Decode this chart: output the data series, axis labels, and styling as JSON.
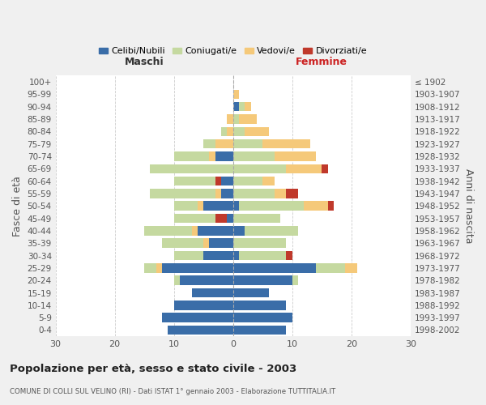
{
  "age_groups": [
    "0-4",
    "5-9",
    "10-14",
    "15-19",
    "20-24",
    "25-29",
    "30-34",
    "35-39",
    "40-44",
    "45-49",
    "50-54",
    "55-59",
    "60-64",
    "65-69",
    "70-74",
    "75-79",
    "80-84",
    "85-89",
    "90-94",
    "95-99",
    "100+"
  ],
  "birth_years": [
    "1998-2002",
    "1993-1997",
    "1988-1992",
    "1983-1987",
    "1978-1982",
    "1973-1977",
    "1968-1972",
    "1963-1967",
    "1958-1962",
    "1953-1957",
    "1948-1952",
    "1943-1947",
    "1938-1942",
    "1933-1937",
    "1928-1932",
    "1923-1927",
    "1918-1922",
    "1913-1917",
    "1908-1912",
    "1903-1907",
    "≤ 1902"
  ],
  "males": {
    "celibi": [
      11,
      12,
      10,
      7,
      9,
      12,
      5,
      4,
      6,
      1,
      5,
      2,
      2,
      0,
      3,
      0,
      0,
      0,
      0,
      0,
      0
    ],
    "coniugati": [
      0,
      0,
      0,
      0,
      1,
      2,
      5,
      7,
      8,
      7,
      4,
      11,
      7,
      14,
      6,
      2,
      1,
      0,
      0,
      0,
      0
    ],
    "vedovi": [
      0,
      0,
      0,
      0,
      0,
      1,
      0,
      1,
      1,
      0,
      1,
      1,
      0,
      0,
      1,
      3,
      1,
      1,
      0,
      0,
      0
    ],
    "divorziati": [
      0,
      0,
      0,
      0,
      0,
      0,
      0,
      0,
      0,
      2,
      0,
      0,
      1,
      0,
      0,
      0,
      0,
      0,
      0,
      0,
      0
    ]
  },
  "females": {
    "nubili": [
      9,
      10,
      9,
      6,
      10,
      14,
      1,
      0,
      2,
      0,
      1,
      0,
      0,
      0,
      0,
      0,
      0,
      0,
      1,
      0,
      0
    ],
    "coniugate": [
      0,
      0,
      0,
      0,
      1,
      5,
      8,
      9,
      9,
      8,
      11,
      7,
      5,
      9,
      7,
      5,
      2,
      1,
      1,
      0,
      0
    ],
    "vedove": [
      0,
      0,
      0,
      0,
      0,
      2,
      0,
      0,
      0,
      0,
      4,
      2,
      2,
      6,
      7,
      8,
      4,
      3,
      1,
      1,
      0
    ],
    "divorziate": [
      0,
      0,
      0,
      0,
      0,
      0,
      1,
      0,
      0,
      0,
      1,
      2,
      0,
      1,
      0,
      0,
      0,
      0,
      0,
      0,
      0
    ]
  },
  "colors": {
    "celibi": "#3a6da8",
    "coniugati": "#c5d9a0",
    "vedovi": "#f5c97a",
    "divorziati": "#c0392b"
  },
  "xlim": 30,
  "title": "Popolazione per età, sesso e stato civile - 2003",
  "subtitle": "COMUNE DI COLLI SUL VELINO (RI) - Dati ISTAT 1° gennaio 2003 - Elaborazione TUTTITALIA.IT",
  "ylabel": "Fasce di età",
  "ylabel_right": "Anni di nascita",
  "xlabel_left": "Maschi",
  "xlabel_right": "Femmine",
  "legend_labels": [
    "Celibi/Nubili",
    "Coniugati/e",
    "Vedovi/e",
    "Divorziati/e"
  ],
  "bg_color": "#f0f0f0",
  "plot_bg": "#ffffff",
  "grid_color": "#cccccc"
}
